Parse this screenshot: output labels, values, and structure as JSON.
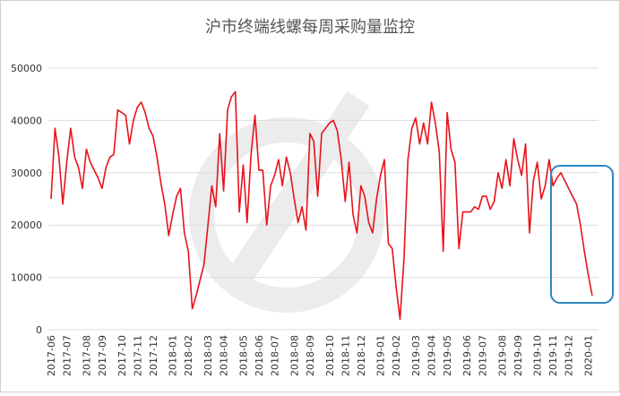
{
  "chart_data": {
    "type": "line",
    "title": "沪市终端线螺每周采购量监控",
    "categories": [
      "2017-06",
      null,
      null,
      null,
      "2017-07",
      null,
      null,
      null,
      null,
      "2017-08",
      null,
      null,
      null,
      "2017-09",
      null,
      null,
      null,
      null,
      "2017-10",
      null,
      null,
      null,
      "2017-11",
      null,
      null,
      null,
      "2017-12",
      null,
      null,
      null,
      null,
      "2018-01",
      null,
      null,
      null,
      "2018-02",
      null,
      null,
      null,
      null,
      "2018-03",
      null,
      null,
      null,
      "2018-04",
      null,
      null,
      null,
      null,
      "2018-05",
      null,
      null,
      null,
      "2018-06",
      null,
      null,
      null,
      "2018-07",
      null,
      null,
      null,
      null,
      "2018-08",
      null,
      null,
      null,
      "2018-09",
      null,
      null,
      null,
      null,
      "2018-10",
      null,
      null,
      null,
      "2018-11",
      null,
      null,
      null,
      "2018-12",
      null,
      null,
      null,
      null,
      "2019-01",
      null,
      null,
      null,
      "2019-02",
      null,
      null,
      null,
      null,
      "2019-03",
      null,
      null,
      null,
      "2019-04",
      null,
      null,
      null,
      "2019-05",
      null,
      null,
      null,
      null,
      "2019-06",
      null,
      null,
      null,
      "2019-07",
      null,
      null,
      null,
      null,
      "2019-08",
      null,
      null,
      null,
      "2019-09",
      null,
      null,
      null,
      null,
      "2019-10",
      null,
      null,
      null,
      "2019-11",
      null,
      null,
      null,
      "2019-12",
      null,
      null,
      null,
      null,
      "2020-01",
      null
    ],
    "series": [
      {
        "name": "采购量",
        "color": "#e8121a",
        "values": [
          25000,
          38500,
          33000,
          24000,
          32000,
          38500,
          33000,
          31000,
          27000,
          34500,
          32000,
          30500,
          29000,
          27000,
          31000,
          33000,
          33500,
          42000,
          41500,
          41000,
          35500,
          40000,
          42500,
          43500,
          41500,
          38500,
          37000,
          33000,
          28000,
          24000,
          18000,
          22000,
          25500,
          27000,
          18500,
          15000,
          4000,
          6500,
          9500,
          12500,
          20000,
          27500,
          23500,
          37500,
          26500,
          42000,
          44500,
          45500,
          22500,
          31500,
          20500,
          33500,
          41000,
          30500,
          30500,
          20000,
          27500,
          29500,
          32500,
          27500,
          33000,
          30000,
          25000,
          20500,
          23500,
          19000,
          37500,
          36000,
          25500,
          37500,
          38500,
          39500,
          40000,
          38000,
          32500,
          24500,
          32000,
          22000,
          18500,
          27500,
          25500,
          20500,
          18500,
          25000,
          29500,
          32500,
          16500,
          15500,
          8000,
          2000,
          13500,
          32500,
          38500,
          40500,
          35500,
          39500,
          35500,
          43500,
          39500,
          34000,
          15000,
          41500,
          34500,
          32000,
          15500,
          22500,
          22500,
          22500,
          23500,
          23000,
          25500,
          25500,
          23000,
          24500,
          30000,
          27000,
          32500,
          27500,
          36500,
          32500,
          29500,
          35500,
          18500,
          28500,
          32000,
          25000,
          27500,
          32500,
          27500,
          29000,
          30000,
          28500,
          27000,
          25500,
          24000,
          20000,
          15000,
          10500,
          6500
        ]
      }
    ],
    "ylim": [
      0,
      50000
    ],
    "yticks": [
      0,
      10000,
      20000,
      30000,
      40000,
      50000
    ],
    "grid": true
  }
}
